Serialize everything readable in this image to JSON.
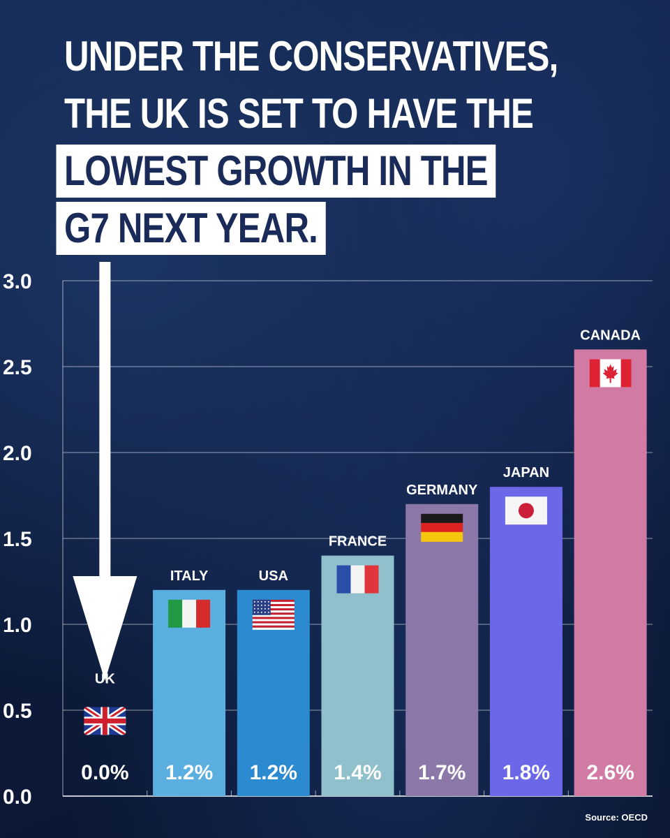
{
  "headline": {
    "line1": "UNDER THE CONSERVATIVES,",
    "line2": "THE UK IS SET TO HAVE THE",
    "line3": "LOWEST GROWTH IN THE",
    "line4": "G7 NEXT YEAR."
  },
  "source": "Source: OECD",
  "colors": {
    "background": "#0d1c3d",
    "headline_box": "#ffffff",
    "headline_box_text": "#1a2b5a",
    "arrow": "#ffffff"
  },
  "chart_data": {
    "type": "bar",
    "categories": [
      "UK",
      "ITALY",
      "USA",
      "FRANCE",
      "GERMANY",
      "JAPAN",
      "CANADA"
    ],
    "values": [
      0.0,
      1.2,
      1.2,
      1.4,
      1.7,
      1.8,
      2.6
    ],
    "value_labels": [
      "0.0%",
      "1.2%",
      "1.2%",
      "1.4%",
      "1.7%",
      "1.8%",
      "2.6%"
    ],
    "flag_icons": [
      "uk-flag-icon",
      "italy-flag-icon",
      "usa-flag-icon",
      "france-flag-icon",
      "germany-flag-icon",
      "japan-flag-icon",
      "canada-flag-icon"
    ],
    "bar_colors": [
      "#0d1c3d",
      "#5aaee0",
      "#2b8ad0",
      "#8fc0cc",
      "#8c78a8",
      "#6a68e8",
      "#d07aa4"
    ],
    "ylim": [
      0,
      3.0
    ],
    "yticks": [
      0.0,
      0.5,
      1.0,
      1.5,
      2.0,
      2.5,
      3.0
    ],
    "ytick_labels": [
      "0.0",
      "0.5",
      "1.0",
      "1.5",
      "2.0",
      "2.5",
      "3.0"
    ],
    "grid": true
  }
}
